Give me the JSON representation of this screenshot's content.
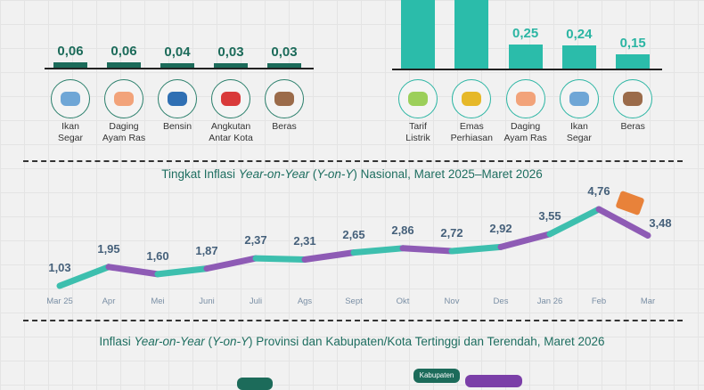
{
  "left_chart": {
    "items": [
      {
        "value": "0,06",
        "label1": "Ikan",
        "label2": "Segar",
        "icon": "fish-icon"
      },
      {
        "value": "0,06",
        "label1": "Daging",
        "label2": "Ayam Ras",
        "icon": "chicken-icon"
      },
      {
        "value": "0,04",
        "label1": "Bensin",
        "label2": "",
        "icon": "fuel-pump-icon"
      },
      {
        "value": "0,03",
        "label1": "Angkutan",
        "label2": "Antar Kota",
        "icon": "bus-icon"
      },
      {
        "value": "0,03",
        "label1": "Beras",
        "label2": "",
        "icon": "rice-sack-icon"
      }
    ]
  },
  "right_chart": {
    "items": [
      {
        "value": null,
        "label1": "Tarif",
        "label2": "Listrik",
        "icon": "electricity-bill-icon"
      },
      {
        "value": null,
        "label1": "Emas",
        "label2": "Perhiasan",
        "icon": "gold-jewelry-icon"
      },
      {
        "value": "0,25",
        "label1": "Daging",
        "label2": "Ayam Ras",
        "icon": "chicken-icon"
      },
      {
        "value": "0,24",
        "label1": "Ikan",
        "label2": "Segar",
        "icon": "fish-icon"
      },
      {
        "value": "0,15",
        "label1": "Beras",
        "label2": "",
        "icon": "rice-sack-icon"
      }
    ]
  },
  "line_title": {
    "a": "Tingkat Inflasi ",
    "b": "Year-on-Year",
    "c": " (",
    "d": "Y-on-Y",
    "e": ") Nasional, Maret 2025–Maret 2026"
  },
  "bottom_title": {
    "a": "Inflasi ",
    "b": "Year-on-Year",
    "c": " (",
    "d": "Y-on-Y",
    "e": ") Provinsi dan Kabupaten/Kota Tertinggi dan Terendah, Maret 2026"
  },
  "bottom_pills": {
    "kabupaten": "Kabupaten"
  },
  "colors": {
    "teal": "#3dbfae",
    "purple": "#8e5bb5",
    "dark_green": "#1c6b5a"
  },
  "chart_data": [
    {
      "type": "bar",
      "title": "",
      "categories": [
        "Ikan Segar",
        "Daging Ayam Ras",
        "Bensin",
        "Angkutan Antar Kota",
        "Beras"
      ],
      "values": [
        0.06,
        0.06,
        0.04,
        0.03,
        0.03
      ]
    },
    {
      "type": "bar",
      "title": "",
      "categories": [
        "Tarif Listrik",
        "Emas Perhiasan",
        "Daging Ayam Ras",
        "Ikan Segar",
        "Beras"
      ],
      "values": [
        null,
        null,
        0.25,
        0.24,
        0.15
      ]
    },
    {
      "type": "line",
      "title": "Tingkat Inflasi Year-on-Year (Y-on-Y) Nasional, Maret 2025–Maret 2026",
      "x": [
        "Mar 25",
        "Apr",
        "Mei",
        "Juni",
        "Juli",
        "Ags",
        "Sept",
        "Okt",
        "Nov",
        "Des",
        "Jan 26",
        "Feb",
        "Mar"
      ],
      "values": [
        1.03,
        1.95,
        1.6,
        1.87,
        2.37,
        2.31,
        2.65,
        2.86,
        2.72,
        2.92,
        3.55,
        4.76,
        3.48
      ],
      "labels": [
        "1,03",
        "1,95",
        "1,60",
        "1,87",
        "2,37",
        "2,31",
        "2,65",
        "2,86",
        "2,72",
        "2,92",
        "3,55",
        "4,76",
        "3,48"
      ],
      "xlabel": "",
      "ylabel": "",
      "grid": false
    }
  ]
}
